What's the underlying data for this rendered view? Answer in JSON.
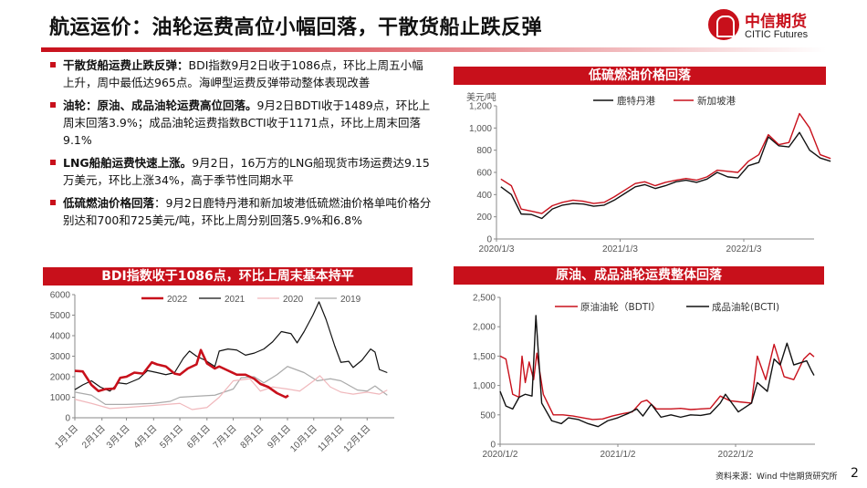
{
  "header": {
    "title": "航运运价：油轮运费高位小幅回落，干散货船止跌反弹",
    "logo_cn": "中信期货",
    "logo_en": "CITIC Futures"
  },
  "bullets": [
    {
      "head": "干散货船运费止跌反弹：",
      "text": "BDI指数9月2日收于1086点，环比上周五小幅上升，周中最低达965点。海岬型运费反弹带动整体表现改善"
    },
    {
      "head": "油轮：原油、成品油轮运费高位回落。",
      "text": "9月2日BDTI收于1489点，环比上周末回落3.9%；成品油轮运费指数BCTI收于1171点，环比上周末回落9.1%"
    },
    {
      "head": "LNG船舶运费快速上涨。",
      "text": "9月2日，16万方的LNG船现货市场运费达9.15万美元，环比上涨34%，高于季节性同期水平"
    },
    {
      "head": "低硫燃油价格回落",
      "text": "：9月2日鹿特丹港和新加坡港低硫燃油价格单吨价格分别达和700和725美元/吨，环比上周分别回落5.9%和6.8%"
    }
  ],
  "footer": {
    "source": "资料来源：Wind 中信期货研究所",
    "page": "2"
  },
  "colors": {
    "accent": "#c8101b"
  },
  "chart_data": [
    {
      "type": "line",
      "title": "BDI指数收于1086点，环比上周末基本持平",
      "ylim": [
        0,
        6000
      ],
      "yticks": [
        "0",
        "1000",
        "2000",
        "3000",
        "4000",
        "5000",
        "6000"
      ],
      "xticks": [
        "1月1日",
        "2月1日",
        "3月1日",
        "4月1日",
        "5月1日",
        "6月1日",
        "7月1日",
        "8月1日",
        "9月1日",
        "10月1日",
        "11月1日",
        "12月1日"
      ],
      "series": [
        {
          "name": "2022",
          "color": "#c8101b",
          "points": [
            [
              "01-01",
              2285
            ],
            [
              "01-10",
              2260
            ],
            [
              "01-20",
              1600
            ],
            [
              "01-28",
              1300
            ],
            [
              "02-05",
              1400
            ],
            [
              "02-15",
              1420
            ],
            [
              "02-22",
              1950
            ],
            [
              "03-01",
              2000
            ],
            [
              "03-10",
              2200
            ],
            [
              "03-20",
              2150
            ],
            [
              "03-30",
              2700
            ],
            [
              "04-05",
              2600
            ],
            [
              "04-15",
              2500
            ],
            [
              "04-25",
              2150
            ],
            [
              "05-01",
              2100
            ],
            [
              "05-10",
              2400
            ],
            [
              "05-20",
              2600
            ],
            [
              "05-25",
              3300
            ],
            [
              "06-01",
              2650
            ],
            [
              "06-10",
              2400
            ],
            [
              "06-15",
              2500
            ],
            [
              "06-25",
              2300
            ],
            [
              "07-05",
              2100
            ],
            [
              "07-15",
              2100
            ],
            [
              "07-25",
              1900
            ],
            [
              "08-01",
              1650
            ],
            [
              "08-10",
              1500
            ],
            [
              "08-20",
              1200
            ],
            [
              "08-30",
              1000
            ],
            [
              "09-02",
              1086
            ]
          ]
        },
        {
          "name": "2021",
          "color": "#111111",
          "points": [
            [
              "01-01",
              1370
            ],
            [
              "01-10",
              1600
            ],
            [
              "01-20",
              1800
            ],
            [
              "01-30",
              1500
            ],
            [
              "02-10",
              1300
            ],
            [
              "02-20",
              1700
            ],
            [
              "03-01",
              1650
            ],
            [
              "03-15",
              1900
            ],
            [
              "03-25",
              2300
            ],
            [
              "04-05",
              2200
            ],
            [
              "04-15",
              2100
            ],
            [
              "04-25",
              2200
            ],
            [
              "05-05",
              2900
            ],
            [
              "05-12",
              3250
            ],
            [
              "05-20",
              3000
            ],
            [
              "05-30",
              2800
            ],
            [
              "06-10",
              2500
            ],
            [
              "06-15",
              3250
            ],
            [
              "06-25",
              3350
            ],
            [
              "07-05",
              3300
            ],
            [
              "07-15",
              3050
            ],
            [
              "07-25",
              3150
            ],
            [
              "08-05",
              3350
            ],
            [
              "08-15",
              3700
            ],
            [
              "08-25",
              4200
            ],
            [
              "09-05",
              4100
            ],
            [
              "09-12",
              3650
            ],
            [
              "09-20",
              4200
            ],
            [
              "09-30",
              5000
            ],
            [
              "10-07",
              5650
            ],
            [
              "10-15",
              4800
            ],
            [
              "10-25",
              3500
            ],
            [
              "11-01",
              2700
            ],
            [
              "11-10",
              2750
            ],
            [
              "11-15",
              2450
            ],
            [
              "11-25",
              2800
            ],
            [
              "12-05",
              3350
            ],
            [
              "12-10",
              3200
            ],
            [
              "12-15",
              2350
            ],
            [
              "12-24",
              2200
            ]
          ]
        },
        {
          "name": "2020",
          "color": "#f0b8bc",
          "points": [
            [
              "01-01",
              900
            ],
            [
              "01-20",
              700
            ],
            [
              "02-10",
              450
            ],
            [
              "03-01",
              500
            ],
            [
              "04-01",
              600
            ],
            [
              "05-01",
              700
            ],
            [
              "05-15",
              400
            ],
            [
              "06-01",
              500
            ],
            [
              "06-15",
              1000
            ],
            [
              "07-01",
              1800
            ],
            [
              "07-20",
              1900
            ],
            [
              "08-01",
              1300
            ],
            [
              "08-15",
              1500
            ],
            [
              "09-01",
              1400
            ],
            [
              "09-15",
              1300
            ],
            [
              "10-01",
              1800
            ],
            [
              "10-08",
              2050
            ],
            [
              "10-20",
              1500
            ],
            [
              "11-01",
              1250
            ],
            [
              "11-15",
              1150
            ],
            [
              "12-01",
              1250
            ],
            [
              "12-15",
              1150
            ],
            [
              "12-24",
              1350
            ]
          ]
        },
        {
          "name": "2019",
          "color": "#aaaaaa",
          "points": [
            [
              "01-01",
              1250
            ],
            [
              "01-20",
              1100
            ],
            [
              "02-05",
              650
            ],
            [
              "03-01",
              650
            ],
            [
              "04-01",
              700
            ],
            [
              "04-20",
              800
            ],
            [
              "05-01",
              1000
            ],
            [
              "05-20",
              1050
            ],
            [
              "06-10",
              1100
            ],
            [
              "07-01",
              1400
            ],
            [
              "07-10",
              1950
            ],
            [
              "07-25",
              2000
            ],
            [
              "08-05",
              1700
            ],
            [
              "08-20",
              2100
            ],
            [
              "09-01",
              2500
            ],
            [
              "09-20",
              2200
            ],
            [
              "10-05",
              1800
            ],
            [
              "10-20",
              1900
            ],
            [
              "11-01",
              1800
            ],
            [
              "11-20",
              1350
            ],
            [
              "12-01",
              1300
            ],
            [
              "12-10",
              1550
            ],
            [
              "12-24",
              1100
            ]
          ]
        }
      ]
    },
    {
      "type": "line",
      "title": "低硫燃油价格回落",
      "ylabel": "美元/吨",
      "ylim": [
        0,
        1200
      ],
      "yticks": [
        "0",
        "200",
        "400",
        "600",
        "800",
        "1,000",
        "1,200"
      ],
      "xticks": [
        "2020/1/3",
        "2021/1/3",
        "2022/1/3"
      ],
      "x": [
        "2020-01",
        "2020-02",
        "2020-03",
        "2020-04",
        "2020-05",
        "2020-06",
        "2020-07",
        "2020-08",
        "2020-09",
        "2020-10",
        "2020-11",
        "2020-12",
        "2021-01",
        "2021-02",
        "2021-03",
        "2021-04",
        "2021-05",
        "2021-06",
        "2021-07",
        "2021-08",
        "2021-09",
        "2021-10",
        "2021-11",
        "2021-12",
        "2022-01",
        "2022-02",
        "2022-03",
        "2022-04",
        "2022-05",
        "2022-06",
        "2022-07",
        "2022-08",
        "2022-09"
      ],
      "series": [
        {
          "name": "鹿特丹港",
          "color": "#111111",
          "values": [
            470,
            400,
            225,
            220,
            185,
            270,
            305,
            320,
            315,
            295,
            305,
            350,
            410,
            470,
            490,
            455,
            480,
            515,
            530,
            510,
            540,
            600,
            560,
            550,
            660,
            690,
            920,
            840,
            830,
            960,
            800,
            730,
            700
          ]
        },
        {
          "name": "新加坡港",
          "color": "#c8101b",
          "values": [
            540,
            480,
            270,
            250,
            230,
            300,
            330,
            350,
            340,
            320,
            330,
            380,
            440,
            500,
            515,
            480,
            510,
            530,
            545,
            530,
            560,
            620,
            610,
            600,
            700,
            760,
            940,
            850,
            870,
            1130,
            1000,
            760,
            725
          ]
        }
      ]
    },
    {
      "type": "line",
      "title": "原油、成品油轮运费整体回落",
      "ylim": [
        0,
        2500
      ],
      "yticks": [
        "0",
        "500",
        "1,000",
        "1,500",
        "2,000",
        "2,500"
      ],
      "xticks": [
        "2020/1/2",
        "2021/1/2",
        "2022/1/2"
      ],
      "series": [
        {
          "name": "原油油轮（BDTI）",
          "color": "#c8101b",
          "points": [
            [
              "2020-01-02",
              1500
            ],
            [
              "2020-01-20",
              1450
            ],
            [
              "2020-02-10",
              850
            ],
            [
              "2020-03-01",
              800
            ],
            [
              "2020-03-10",
              1500
            ],
            [
              "2020-03-20",
              1050
            ],
            [
              "2020-04-01",
              1400
            ],
            [
              "2020-04-15",
              1100
            ],
            [
              "2020-04-25",
              1550
            ],
            [
              "2020-05-15",
              850
            ],
            [
              "2020-06-15",
              500
            ],
            [
              "2020-07-15",
              500
            ],
            [
              "2020-08-15",
              480
            ],
            [
              "2020-09-15",
              450
            ],
            [
              "2020-10-15",
              420
            ],
            [
              "2020-11-15",
              430
            ],
            [
              "2020-12-15",
              480
            ],
            [
              "2021-01-15",
              520
            ],
            [
              "2021-02-15",
              550
            ],
            [
              "2021-03-15",
              720
            ],
            [
              "2021-04-01",
              750
            ],
            [
              "2021-05-01",
              600
            ],
            [
              "2021-06-15",
              600
            ],
            [
              "2021-07-15",
              610
            ],
            [
              "2021-08-15",
              590
            ],
            [
              "2021-09-15",
              600
            ],
            [
              "2021-10-15",
              610
            ],
            [
              "2021-11-15",
              820
            ],
            [
              "2021-12-15",
              740
            ],
            [
              "2022-01-15",
              720
            ],
            [
              "2022-02-20",
              700
            ],
            [
              "2022-03-10",
              1500
            ],
            [
              "2022-04-05",
              1100
            ],
            [
              "2022-05-01",
              1700
            ],
            [
              "2022-06-01",
              1150
            ],
            [
              "2022-07-01",
              1100
            ],
            [
              "2022-08-01",
              1450
            ],
            [
              "2022-08-20",
              1550
            ],
            [
              "2022-09-02",
              1489
            ]
          ]
        },
        {
          "name": "成品油轮(BCTI)",
          "color": "#111111",
          "points": [
            [
              "2020-01-02",
              900
            ],
            [
              "2020-01-20",
              650
            ],
            [
              "2020-02-10",
              600
            ],
            [
              "2020-03-01",
              800
            ],
            [
              "2020-03-20",
              850
            ],
            [
              "2020-04-10",
              820
            ],
            [
              "2020-04-22",
              2190
            ],
            [
              "2020-05-10",
              700
            ],
            [
              "2020-06-10",
              400
            ],
            [
              "2020-07-10",
              350
            ],
            [
              "2020-08-01",
              450
            ],
            [
              "2020-09-01",
              420
            ],
            [
              "2020-10-01",
              350
            ],
            [
              "2020-11-01",
              300
            ],
            [
              "2020-12-01",
              400
            ],
            [
              "2021-01-01",
              450
            ],
            [
              "2021-02-01",
              520
            ],
            [
              "2021-03-01",
              600
            ],
            [
              "2021-03-20",
              480
            ],
            [
              "2021-04-15",
              680
            ],
            [
              "2021-05-15",
              460
            ],
            [
              "2021-06-15",
              500
            ],
            [
              "2021-07-15",
              460
            ],
            [
              "2021-08-15",
              500
            ],
            [
              "2021-09-15",
              490
            ],
            [
              "2021-10-15",
              520
            ],
            [
              "2021-11-15",
              700
            ],
            [
              "2021-12-01",
              850
            ],
            [
              "2022-01-10",
              550
            ],
            [
              "2022-02-20",
              700
            ],
            [
              "2022-03-10",
              1050
            ],
            [
              "2022-04-10",
              900
            ],
            [
              "2022-05-01",
              1450
            ],
            [
              "2022-05-20",
              1350
            ],
            [
              "2022-06-10",
              1720
            ],
            [
              "2022-07-01",
              1350
            ],
            [
              "2022-08-10",
              1420
            ],
            [
              "2022-08-25",
              1250
            ],
            [
              "2022-09-02",
              1171
            ]
          ]
        }
      ]
    }
  ]
}
